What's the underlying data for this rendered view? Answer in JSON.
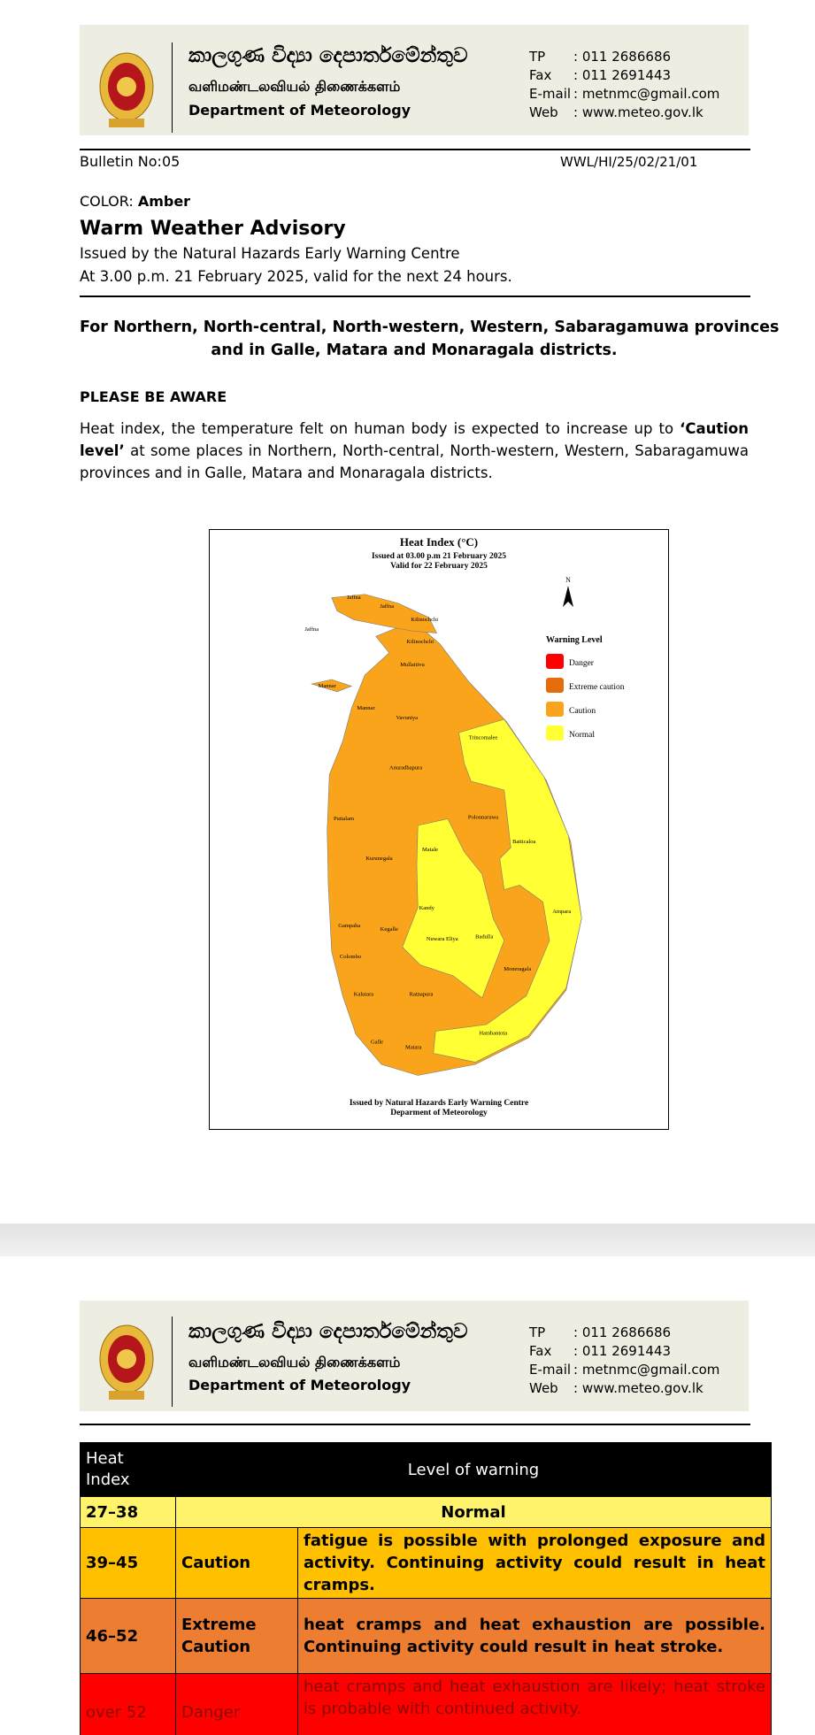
{
  "header": {
    "sinhala": "කාලගුණ විද්‍යා දෙපාර්තමේන්තුව",
    "tamil": "வளிமண்டலவியல் திணைக்களம்",
    "department": "Department of Meteorology",
    "contacts": [
      {
        "label": "TP",
        "value": ": 011 2686686"
      },
      {
        "label": "Fax",
        "value": ": 011 2691443"
      },
      {
        "label": "E-mail",
        "value": ": metnmc@gmail.com"
      },
      {
        "label": "Web",
        "value": ": www.meteo.gov.lk"
      }
    ]
  },
  "bulletin": {
    "number": "Bulletin No:05",
    "reference": "WWL/HI/25/02/21/01"
  },
  "advisory": {
    "color_label": "COLOR:",
    "color": "Amber",
    "title": "Warm Weather Advisory",
    "issued_by": "Issued by the Natural Hazards Early Warning Centre",
    "issued_at": "At 3.00 p.m. 21 February 2025, valid for the next 24 hours."
  },
  "regions": [
    "For Northern, North-central, North-western, Western, Sabaragamuwa provinces",
    "and in Galle, Matara and Monaragala districts."
  ],
  "notice": "PLEASE BE AWARE",
  "body": {
    "before": "Heat index, the temperature felt on human body is expected to increase up to ",
    "emphasis": "‘Caution level’",
    "after": " at some places in Northern, North-central, North-western, Western, Sabaragamuwa provinces and in Galle, Matara and Monaragala districts."
  },
  "map": {
    "title": "Heat Index (°C)",
    "issued": "Issued at 03.00 p.m 21 February 2025",
    "valid": "Valid for 22 February 2025",
    "north": "N",
    "legend_title": "Warning Level",
    "legend": [
      {
        "name": "Danger",
        "color": "#ff0000"
      },
      {
        "name": "Extreme caution",
        "color": "#e46c0a"
      },
      {
        "name": "Caution",
        "color": "#f9a41b"
      },
      {
        "name": "Normal",
        "color": "#ffff33"
      }
    ],
    "districts": [
      "Jaffna",
      "Jaffna",
      "Kilinochchi",
      "Jaffna",
      "Kilinochchi",
      "Mullaitivu",
      "Mannar",
      "Mannar",
      "Vavuniya",
      "Trincomalee",
      "Anuradhapura",
      "Polonnaruwa",
      "Puttalam",
      "Batticaloa",
      "Matale",
      "Kurunegala",
      "Kandy",
      "Ampara",
      "Gampaha",
      "Kegalle",
      "Badulla",
      "Nuwara Eliya",
      "Colombo",
      "Moneragala",
      "Kalutara",
      "Ratnapura",
      "Hambantota",
      "Galle",
      "Matara"
    ],
    "footer": [
      "Issued by Natural Hazards Early Warning Centre",
      "Deparment of Meteorology"
    ]
  },
  "table": {
    "header": [
      "Heat Index",
      "Level of warning"
    ],
    "rows": [
      [
        "27–38",
        "Normal"
      ],
      [
        "39–45",
        "Caution",
        "fatigue is possible with prolonged exposure and activity. Continuing activity could result in heat cramps."
      ],
      [
        "46–52",
        "Extreme Caution",
        "heat cramps and heat exhaustion are possible. Continuing activity could result in heat stroke."
      ],
      [
        "over 52",
        "Danger",
        "heat cramps and heat exhaustion are likely; heat stroke is probable with continued activity."
      ]
    ]
  }
}
